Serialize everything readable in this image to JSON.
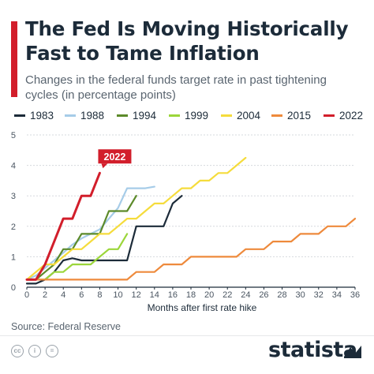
{
  "header": {
    "title": "The Fed Is Moving Historically\nFast to Tame Inflation",
    "subtitle": "Changes in the federal funds target rate in past tightening cycles (in percentage points)"
  },
  "footer": {
    "source": "Source: Federal Reserve",
    "brand": "statista",
    "license_icons": [
      "cc-icon",
      "attribution-icon",
      "no-derivatives-icon"
    ]
  },
  "colors": {
    "accent": "#d21e2b",
    "axis": "#1c2b39",
    "grid": "#d5d9dd"
  },
  "chart_data": {
    "type": "line",
    "title": "The Fed Is Moving Historically Fast to Tame Inflation",
    "subtitle": "Changes in the federal funds target rate in past tightening cycles (in percentage points)",
    "xlabel": "Months after first rate hike",
    "ylabel": "",
    "xlim": [
      0,
      36
    ],
    "ylim": [
      0,
      5
    ],
    "x_ticks": [
      0,
      2,
      4,
      6,
      8,
      10,
      12,
      14,
      16,
      18,
      20,
      22,
      24,
      26,
      28,
      30,
      32,
      34,
      36
    ],
    "y_ticks": [
      0,
      1,
      2,
      3,
      4,
      5
    ],
    "grid": "horizontal",
    "legend_position": "top",
    "annotation": {
      "text": "2022",
      "series": "2022",
      "x": 8,
      "y": 3.75
    },
    "series": [
      {
        "name": "1983",
        "color": "#1c2b39",
        "points": [
          [
            0,
            0.12
          ],
          [
            1,
            0.12
          ],
          [
            2,
            0.25
          ],
          [
            3,
            0.5
          ],
          [
            4,
            0.88
          ],
          [
            5,
            0.95
          ],
          [
            6,
            0.88
          ],
          [
            7,
            0.88
          ],
          [
            8,
            0.88
          ],
          [
            9,
            0.88
          ],
          [
            10,
            0.88
          ],
          [
            11,
            0.88
          ],
          [
            12,
            2.0
          ],
          [
            13,
            2.0
          ],
          [
            14,
            2.0
          ],
          [
            15,
            2.0
          ],
          [
            16,
            2.75
          ],
          [
            17,
            3.0
          ]
        ]
      },
      {
        "name": "1988",
        "color": "#a6cce8",
        "points": [
          [
            0,
            0.25
          ],
          [
            1,
            0.38
          ],
          [
            2,
            0.63
          ],
          [
            3,
            0.88
          ],
          [
            4,
            1.13
          ],
          [
            5,
            1.4
          ],
          [
            6,
            1.6
          ],
          [
            7,
            1.75
          ],
          [
            8,
            1.9
          ],
          [
            9,
            2.25
          ],
          [
            10,
            2.6
          ],
          [
            11,
            3.25
          ],
          [
            12,
            3.25
          ],
          [
            13,
            3.25
          ],
          [
            14,
            3.3
          ]
        ]
      },
      {
        "name": "1994",
        "color": "#5c8a2a",
        "points": [
          [
            0,
            0.25
          ],
          [
            1,
            0.25
          ],
          [
            2,
            0.5
          ],
          [
            3,
            0.75
          ],
          [
            4,
            1.25
          ],
          [
            5,
            1.25
          ],
          [
            6,
            1.75
          ],
          [
            7,
            1.75
          ],
          [
            8,
            1.75
          ],
          [
            9,
            2.5
          ],
          [
            10,
            2.5
          ],
          [
            11,
            2.5
          ],
          [
            12,
            3.0
          ]
        ]
      },
      {
        "name": "1999",
        "color": "#9bd63a",
        "points": [
          [
            0,
            0.25
          ],
          [
            1,
            0.25
          ],
          [
            2,
            0.25
          ],
          [
            3,
            0.5
          ],
          [
            4,
            0.5
          ],
          [
            5,
            0.75
          ],
          [
            6,
            0.75
          ],
          [
            7,
            0.75
          ],
          [
            8,
            1.0
          ],
          [
            9,
            1.25
          ],
          [
            10,
            1.25
          ],
          [
            11,
            1.75
          ]
        ]
      },
      {
        "name": "2004",
        "color": "#f5dc3c",
        "points": [
          [
            0,
            0.25
          ],
          [
            1,
            0.5
          ],
          [
            2,
            0.75
          ],
          [
            3,
            0.75
          ],
          [
            4,
            1.0
          ],
          [
            5,
            1.25
          ],
          [
            6,
            1.25
          ],
          [
            7,
            1.5
          ],
          [
            8,
            1.75
          ],
          [
            9,
            1.75
          ],
          [
            10,
            2.0
          ],
          [
            11,
            2.25
          ],
          [
            12,
            2.25
          ],
          [
            13,
            2.5
          ],
          [
            14,
            2.75
          ],
          [
            15,
            2.75
          ],
          [
            16,
            3.0
          ],
          [
            17,
            3.25
          ],
          [
            18,
            3.25
          ],
          [
            19,
            3.5
          ],
          [
            20,
            3.5
          ],
          [
            21,
            3.75
          ],
          [
            22,
            3.75
          ],
          [
            23,
            4.0
          ],
          [
            24,
            4.25
          ]
        ]
      },
      {
        "name": "2015",
        "color": "#ee8a3c",
        "points": [
          [
            0,
            0.25
          ],
          [
            1,
            0.25
          ],
          [
            2,
            0.25
          ],
          [
            3,
            0.25
          ],
          [
            4,
            0.25
          ],
          [
            5,
            0.25
          ],
          [
            6,
            0.25
          ],
          [
            7,
            0.25
          ],
          [
            8,
            0.25
          ],
          [
            9,
            0.25
          ],
          [
            10,
            0.25
          ],
          [
            11,
            0.25
          ],
          [
            12,
            0.5
          ],
          [
            13,
            0.5
          ],
          [
            14,
            0.5
          ],
          [
            15,
            0.75
          ],
          [
            16,
            0.75
          ],
          [
            17,
            0.75
          ],
          [
            18,
            1.0
          ],
          [
            19,
            1.0
          ],
          [
            20,
            1.0
          ],
          [
            21,
            1.0
          ],
          [
            22,
            1.0
          ],
          [
            23,
            1.0
          ],
          [
            24,
            1.25
          ],
          [
            25,
            1.25
          ],
          [
            26,
            1.25
          ],
          [
            27,
            1.5
          ],
          [
            28,
            1.5
          ],
          [
            29,
            1.5
          ],
          [
            30,
            1.75
          ],
          [
            31,
            1.75
          ],
          [
            32,
            1.75
          ],
          [
            33,
            2.0
          ],
          [
            34,
            2.0
          ],
          [
            35,
            2.0
          ],
          [
            36,
            2.25
          ]
        ]
      },
      {
        "name": "2022",
        "color": "#d21e2b",
        "points": [
          [
            0,
            0.25
          ],
          [
            1,
            0.25
          ],
          [
            2,
            0.75
          ],
          [
            3,
            1.5
          ],
          [
            4,
            2.25
          ],
          [
            5,
            2.25
          ],
          [
            6,
            3.0
          ],
          [
            7,
            3.0
          ],
          [
            8,
            3.75
          ]
        ]
      }
    ]
  }
}
